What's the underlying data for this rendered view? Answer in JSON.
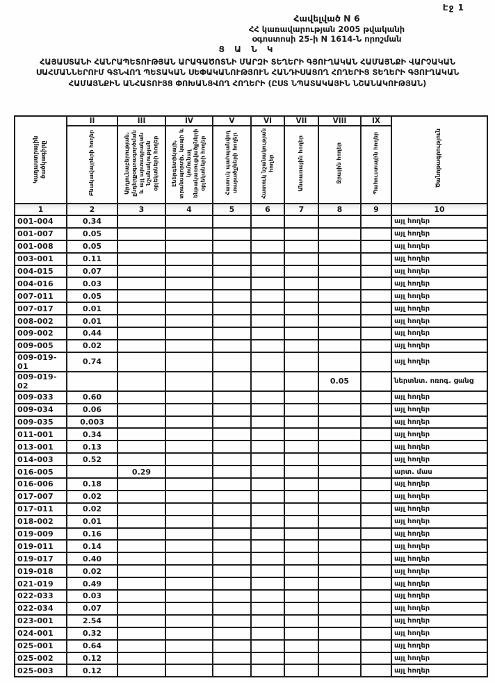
{
  "page": {
    "page_label": "Էջ 1",
    "appendix_line1": "Հավելված N 6",
    "appendix_line2": "ՀՀ կառավարության 2005 թվականի",
    "appendix_line3": "օգոստոսի 25-ի N 1614-Ն որոշման",
    "title_word": "Ց Ա Ն Կ",
    "title": "ՀԱՅԱՍՏԱՆԻ ՀԱՆՐԱՊԵՏՈՒԹՅԱՆ ԱՐԱԳԱԾՈՏՆԻ ՄԱՐԶԻ  ՏԵՂԵՐԻ ԳՅՈՒՂԱԿԱՆ ՀԱՄԱՅՆՔԻ ՎԱՐՉԱԿԱՆ ՍԱՀՄԱՆՆԵՐՈՒՄ  ԳՏՆՎՈՂ  ՊԵՏԱԿԱՆ ՍԵՓԱԿԱՆՈՒԹՅՈՒՆ  ՀԱՆԴԻՍԱՑՈՂ ՀՈՂԵՐԻՑ ՏԵՂԵՐԻ ԳՅՈՒՂԱԿԱՆ ՀԱՄԱՅՆՔԻՆ ԱՆՀԱՏՈՒՅՑ ՓՈԽԱՆՑՎՈՂ ՀՈՂԵՐԻ  (ԸՍՏ ՆՊԱՏԱԿԱՅԻՆ ՆՇԱՆԱԿՈՒԹՅԱՆ)"
  },
  "table": {
    "col1": {
      "header": "Կադաստրային ծածկագիրը",
      "number": "1"
    },
    "col10": {
      "header": "Ծանոթագրություն",
      "number": "10"
    },
    "value_columns": [
      {
        "numeral": "II",
        "header": "Բնակավայրերի հողեր",
        "number": "2"
      },
      {
        "numeral": "III",
        "header": "Արդյունաբերության, ընդերքօգտագործման և այլ արտադրական նշանակության օբյեկտների հողեր",
        "number": "3"
      },
      {
        "numeral": "IV",
        "header": "Էներգետիկայի, տրանսպորտի, կապի և կոմունալ ենթակառուցվածքների օբյեկտների հողեր",
        "number": "4"
      },
      {
        "numeral": "V",
        "header": "Հատուկ պահպանվող տարածքների հողեր",
        "number": "5"
      },
      {
        "numeral": "VI",
        "header": "Հատուկ նշանակության հողեր",
        "number": "6"
      },
      {
        "numeral": "VII",
        "header": "Անտառային հողեր",
        "number": "7"
      },
      {
        "numeral": "VIII",
        "header": "Ջրային հողեր",
        "number": "8"
      },
      {
        "numeral": "IX",
        "header": "Պահուստային հողեր",
        "number": "9"
      }
    ],
    "rows": [
      {
        "code": "001-004",
        "values": [
          "0.34",
          "",
          "",
          "",
          "",
          "",
          "",
          ""
        ],
        "note": "այլ հողեր"
      },
      {
        "code": "001-007",
        "values": [
          "0.05",
          "",
          "",
          "",
          "",
          "",
          "",
          ""
        ],
        "note": "այլ հողեր"
      },
      {
        "code": "001-008",
        "values": [
          "0.05",
          "",
          "",
          "",
          "",
          "",
          "",
          ""
        ],
        "note": "այլ հողեր"
      },
      {
        "code": "003-001",
        "values": [
          "0.11",
          "",
          "",
          "",
          "",
          "",
          "",
          ""
        ],
        "note": "այլ հողեր"
      },
      {
        "code": "004-015",
        "values": [
          "0.07",
          "",
          "",
          "",
          "",
          "",
          "",
          ""
        ],
        "note": "այլ հողեր"
      },
      {
        "code": "004-016",
        "values": [
          "0.03",
          "",
          "",
          "",
          "",
          "",
          "",
          ""
        ],
        "note": "այլ հողեր"
      },
      {
        "code": "007-011",
        "values": [
          "0.05",
          "",
          "",
          "",
          "",
          "",
          "",
          ""
        ],
        "note": "այլ հողեր"
      },
      {
        "code": "007-017",
        "values": [
          "0.01",
          "",
          "",
          "",
          "",
          "",
          "",
          ""
        ],
        "note": "այլ հողեր"
      },
      {
        "code": "008-002",
        "values": [
          "0.01",
          "",
          "",
          "",
          "",
          "",
          "",
          ""
        ],
        "note": "այլ հողեր"
      },
      {
        "code": "009-002",
        "values": [
          "0.44",
          "",
          "",
          "",
          "",
          "",
          "",
          ""
        ],
        "note": "այլ հողեր"
      },
      {
        "code": "009-005",
        "values": [
          "0.02",
          "",
          "",
          "",
          "",
          "",
          "",
          ""
        ],
        "note": "այլ հողեր"
      },
      {
        "code": "009-019-01",
        "values": [
          "0.74",
          "",
          "",
          "",
          "",
          "",
          "",
          ""
        ],
        "note": "այլ հողեր"
      },
      {
        "code": "009-019-02",
        "values": [
          "",
          "",
          "",
          "",
          "",
          "",
          "0.05",
          ""
        ],
        "note": "ներտնտ. ոռոգ. ցանց"
      },
      {
        "code": "009-033",
        "values": [
          "0.60",
          "",
          "",
          "",
          "",
          "",
          "",
          ""
        ],
        "note": "այլ հողեր"
      },
      {
        "code": "009-034",
        "values": [
          "0.06",
          "",
          "",
          "",
          "",
          "",
          "",
          ""
        ],
        "note": "այլ հողեր"
      },
      {
        "code": "009-035",
        "values": [
          "0.003",
          "",
          "",
          "",
          "",
          "",
          "",
          ""
        ],
        "note": "այլ հողեր"
      },
      {
        "code": "011-001",
        "values": [
          "0.34",
          "",
          "",
          "",
          "",
          "",
          "",
          ""
        ],
        "note": "այլ հողեր"
      },
      {
        "code": "013-001",
        "values": [
          "0.13",
          "",
          "",
          "",
          "",
          "",
          "",
          ""
        ],
        "note": "այլ հողեր"
      },
      {
        "code": "014-003",
        "values": [
          "0.52",
          "",
          "",
          "",
          "",
          "",
          "",
          ""
        ],
        "note": "այլ հողեր"
      },
      {
        "code": "016-005",
        "values": [
          "",
          "0.29",
          "",
          "",
          "",
          "",
          "",
          ""
        ],
        "note": "արտ. մաս"
      },
      {
        "code": "016-006",
        "values": [
          "0.18",
          "",
          "",
          "",
          "",
          "",
          "",
          ""
        ],
        "note": "այլ հողեր"
      },
      {
        "code": "017-007",
        "values": [
          "0.02",
          "",
          "",
          "",
          "",
          "",
          "",
          ""
        ],
        "note": "այլ հողեր"
      },
      {
        "code": "017-011",
        "values": [
          "0.02",
          "",
          "",
          "",
          "",
          "",
          "",
          ""
        ],
        "note": "այլ հողեր"
      },
      {
        "code": "018-002",
        "values": [
          "0.01",
          "",
          "",
          "",
          "",
          "",
          "",
          ""
        ],
        "note": "այլ հողեր"
      },
      {
        "code": "019-009",
        "values": [
          "0.16",
          "",
          "",
          "",
          "",
          "",
          "",
          ""
        ],
        "note": "այլ հողեր"
      },
      {
        "code": "019-011",
        "values": [
          "0.14",
          "",
          "",
          "",
          "",
          "",
          "",
          ""
        ],
        "note": "այլ հողեր"
      },
      {
        "code": "019-017",
        "values": [
          "0.40",
          "",
          "",
          "",
          "",
          "",
          "",
          ""
        ],
        "note": "այլ հողեր"
      },
      {
        "code": "019-018",
        "values": [
          "0.02",
          "",
          "",
          "",
          "",
          "",
          "",
          ""
        ],
        "note": "այլ հողեր"
      },
      {
        "code": "021-019",
        "values": [
          "0.49",
          "",
          "",
          "",
          "",
          "",
          "",
          ""
        ],
        "note": "այլ հողեր"
      },
      {
        "code": "022-033",
        "values": [
          "0.03",
          "",
          "",
          "",
          "",
          "",
          "",
          ""
        ],
        "note": "այլ հողեր"
      },
      {
        "code": "022-034",
        "values": [
          "0.07",
          "",
          "",
          "",
          "",
          "",
          "",
          ""
        ],
        "note": "այլ հողեր"
      },
      {
        "code": "023-001",
        "values": [
          "2.54",
          "",
          "",
          "",
          "",
          "",
          "",
          ""
        ],
        "note": "այլ հողեր"
      },
      {
        "code": "024-001",
        "values": [
          "0.32",
          "",
          "",
          "",
          "",
          "",
          "",
          ""
        ],
        "note": "այլ հողեր"
      },
      {
        "code": "025-001",
        "values": [
          "0.64",
          "",
          "",
          "",
          "",
          "",
          "",
          ""
        ],
        "note": "այլ հողեր"
      },
      {
        "code": "025-002",
        "values": [
          "0.12",
          "",
          "",
          "",
          "",
          "",
          "",
          ""
        ],
        "note": "այլ հողեր"
      },
      {
        "code": "025-003",
        "values": [
          "0.12",
          "",
          "",
          "",
          "",
          "",
          "",
          ""
        ],
        "note": "այլ հողեր"
      }
    ]
  }
}
